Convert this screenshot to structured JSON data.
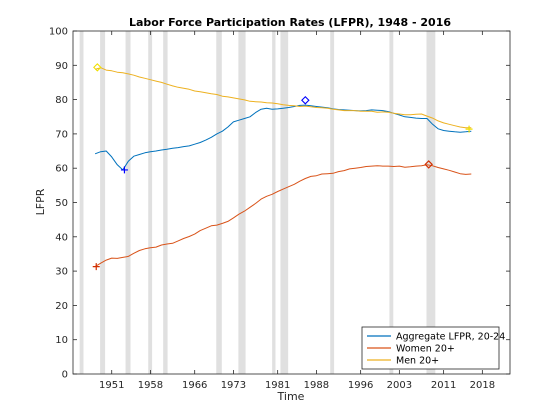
{
  "chart_data": {
    "type": "line",
    "title": "Labor Force Participation Rates (LFPR), 1948 - 2016",
    "xlabel": "Time",
    "ylabel": "LFPR",
    "xlim": [
      1944,
      2023
    ],
    "ylim": [
      0,
      100
    ],
    "xticks": [
      1951,
      1958,
      1966,
      1973,
      1981,
      1988,
      1996,
      2003,
      2011,
      2018
    ],
    "yticks": [
      0,
      10,
      20,
      30,
      40,
      50,
      60,
      70,
      80,
      90,
      100
    ],
    "grid": false,
    "legend_position": "bottom-right",
    "recession_bands": [
      [
        1945.2,
        1945.9
      ],
      [
        1948.9,
        1949.8
      ],
      [
        1953.5,
        1954.4
      ],
      [
        1957.6,
        1958.3
      ],
      [
        1960.3,
        1961.1
      ],
      [
        1969.9,
        1970.9
      ],
      [
        1973.9,
        1975.2
      ],
      [
        1980.0,
        1980.6
      ],
      [
        1981.5,
        1982.9
      ],
      [
        1990.5,
        1991.2
      ],
      [
        2001.2,
        2001.9
      ],
      [
        2007.9,
        2009.5
      ]
    ],
    "series": [
      {
        "name": "Aggregate LFPR, 20-24",
        "color": "#0072BD",
        "x": [
          1948,
          1949,
          1950,
          1951,
          1952,
          1953,
          1954,
          1955,
          1956,
          1957,
          1958,
          1959,
          1960,
          1961,
          1962,
          1963,
          1964,
          1965,
          1966,
          1967,
          1968,
          1969,
          1970,
          1971,
          1972,
          1973,
          1974,
          1975,
          1976,
          1977,
          1978,
          1979,
          1980,
          1981,
          1982,
          1983,
          1984,
          1985,
          1986,
          1987,
          1988,
          1989,
          1990,
          1991,
          1992,
          1993,
          1994,
          1995,
          1996,
          1997,
          1998,
          1999,
          2000,
          2001,
          2002,
          2003,
          2004,
          2005,
          2006,
          2007,
          2008,
          2009,
          2010,
          2011,
          2012,
          2013,
          2014,
          2015,
          2016
        ],
        "y": [
          64.2,
          64.8,
          65.0,
          63.3,
          61.0,
          59.5,
          62.0,
          63.5,
          64.0,
          64.5,
          64.8,
          65.0,
          65.3,
          65.5,
          65.8,
          66.0,
          66.3,
          66.5,
          67.0,
          67.5,
          68.2,
          69.0,
          70.0,
          70.8,
          72.0,
          73.5,
          74.0,
          74.5,
          75.0,
          76.2,
          77.2,
          77.5,
          77.2,
          77.3,
          77.5,
          77.7,
          78.0,
          78.3,
          78.4,
          78.2,
          78.0,
          77.8,
          77.6,
          77.3,
          77.1,
          77.0,
          76.9,
          76.8,
          76.7,
          76.8,
          77.0,
          76.9,
          76.8,
          76.5,
          76.0,
          75.5,
          75.0,
          74.8,
          74.6,
          74.5,
          74.5,
          72.8,
          71.5,
          71.0,
          70.8,
          70.6,
          70.5,
          70.6,
          70.8
        ]
      },
      {
        "name": "Women 20+",
        "color": "#D95319",
        "x": [
          1948,
          1949,
          1950,
          1951,
          1952,
          1953,
          1954,
          1955,
          1956,
          1957,
          1958,
          1959,
          1960,
          1961,
          1962,
          1963,
          1964,
          1965,
          1966,
          1967,
          1968,
          1969,
          1970,
          1971,
          1972,
          1973,
          1974,
          1975,
          1976,
          1977,
          1978,
          1979,
          1980,
          1981,
          1982,
          1983,
          1984,
          1985,
          1986,
          1987,
          1988,
          1989,
          1990,
          1991,
          1992,
          1993,
          1994,
          1995,
          1996,
          1997,
          1998,
          1999,
          2000,
          2001,
          2002,
          2003,
          2004,
          2005,
          2006,
          2007,
          2008,
          2009,
          2010,
          2011,
          2012,
          2013,
          2014,
          2015,
          2016
        ],
        "y": [
          31.3,
          32.3,
          33.2,
          33.8,
          33.7,
          34.0,
          34.3,
          35.2,
          36.0,
          36.5,
          36.8,
          37.0,
          37.6,
          37.9,
          38.1,
          38.8,
          39.5,
          40.1,
          40.8,
          41.8,
          42.5,
          43.2,
          43.4,
          43.9,
          44.5,
          45.5,
          46.6,
          47.5,
          48.6,
          49.7,
          51.0,
          51.8,
          52.4,
          53.2,
          53.9,
          54.6,
          55.3,
          56.2,
          57.0,
          57.6,
          57.8,
          58.3,
          58.4,
          58.5,
          59.0,
          59.3,
          59.8,
          60.0,
          60.2,
          60.5,
          60.6,
          60.7,
          60.6,
          60.6,
          60.5,
          60.6,
          60.3,
          60.4,
          60.6,
          60.7,
          61.0,
          60.7,
          60.2,
          59.8,
          59.4,
          58.9,
          58.4,
          58.2,
          58.3
        ]
      },
      {
        "name": "Men 20+",
        "color": "#EDB120",
        "x": [
          1948,
          1949,
          1950,
          1951,
          1952,
          1953,
          1954,
          1955,
          1956,
          1957,
          1958,
          1959,
          1960,
          1961,
          1962,
          1963,
          1964,
          1965,
          1966,
          1967,
          1968,
          1969,
          1970,
          1971,
          1972,
          1973,
          1974,
          1975,
          1976,
          1977,
          1978,
          1979,
          1980,
          1981,
          1982,
          1983,
          1984,
          1985,
          1986,
          1987,
          1988,
          1989,
          1990,
          1991,
          1992,
          1993,
          1994,
          1995,
          1996,
          1997,
          1998,
          1999,
          2000,
          2001,
          2002,
          2003,
          2004,
          2005,
          2006,
          2007,
          2008,
          2009,
          2010,
          2011,
          2012,
          2013,
          2014,
          2015,
          2016
        ],
        "y": [
          88.8,
          89.3,
          88.6,
          88.4,
          88.0,
          87.8,
          87.5,
          87.1,
          86.6,
          86.2,
          85.8,
          85.4,
          85.0,
          84.5,
          84.0,
          83.6,
          83.3,
          83.0,
          82.5,
          82.3,
          82.0,
          81.7,
          81.5,
          81.0,
          80.8,
          80.5,
          80.2,
          79.9,
          79.5,
          79.4,
          79.3,
          79.1,
          79.0,
          78.8,
          78.5,
          78.3,
          78.2,
          78.0,
          78.1,
          77.9,
          77.7,
          77.6,
          77.5,
          77.2,
          77.0,
          76.8,
          76.8,
          76.8,
          76.6,
          76.6,
          76.6,
          76.3,
          76.4,
          76.3,
          76.0,
          75.8,
          75.6,
          75.6,
          75.7,
          75.8,
          75.2,
          74.6,
          73.8,
          73.2,
          72.8,
          72.4,
          72.0,
          71.8,
          71.8
        ]
      }
    ],
    "markers": [
      {
        "series": "Aggregate LFPR, 20-24",
        "shape": "plus",
        "x": 1953.3,
        "y": 59.5,
        "color": "#0000FF"
      },
      {
        "series": "Aggregate LFPR, 20-24",
        "shape": "diamond",
        "x": 1986.0,
        "y": 79.8,
        "color": "#0000FF"
      },
      {
        "series": "Women 20+",
        "shape": "plus",
        "x": 1948.2,
        "y": 31.3,
        "color": "#D12E00"
      },
      {
        "series": "Women 20+",
        "shape": "diamond",
        "x": 2008.3,
        "y": 61.1,
        "color": "#D12E00"
      },
      {
        "series": "Men 20+",
        "shape": "diamond",
        "x": 1948.4,
        "y": 89.4,
        "color": "#F0E000"
      },
      {
        "series": "Men 20+",
        "shape": "plus",
        "x": 2015.6,
        "y": 71.4,
        "color": "#F0E000"
      }
    ]
  }
}
